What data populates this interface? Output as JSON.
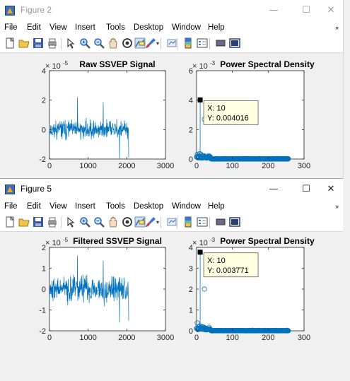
{
  "windows": [
    {
      "title": "Figure 2",
      "active": false,
      "menu": [
        "File",
        "Edit",
        "View",
        "Insert",
        "Tools",
        "Desktop",
        "Window",
        "Help"
      ],
      "plots": [
        {
          "title": "Raw SSVEP Signal",
          "exponent": "× 10",
          "exponent_power": "-5",
          "yticks": [
            "-2",
            "0",
            "2",
            "4"
          ],
          "xticks": [
            "0",
            "1000",
            "2000",
            "3000"
          ]
        },
        {
          "title": "Power Spectral Density",
          "exponent": "× 10",
          "exponent_power": "-3",
          "yticks": [
            "0",
            "2",
            "4",
            "6"
          ],
          "xticks": [
            "0",
            "100",
            "200",
            "300"
          ],
          "datatip": {
            "x": "X: 10",
            "y": "Y: 0.004016"
          }
        }
      ]
    },
    {
      "title": "Figure 5",
      "active": true,
      "menu": [
        "File",
        "Edit",
        "View",
        "Insert",
        "Tools",
        "Desktop",
        "Window",
        "Help"
      ],
      "plots": [
        {
          "title": "Filtered SSVEP Signal",
          "exponent": "× 10",
          "exponent_power": "-5",
          "yticks": [
            "-2",
            "-1",
            "0",
            "1",
            "2"
          ],
          "xticks": [
            "0",
            "1000",
            "2000",
            "3000"
          ]
        },
        {
          "title": "Power Spectral Density",
          "exponent": "× 10",
          "exponent_power": "-3",
          "yticks": [
            "0",
            "1",
            "2",
            "3",
            "4"
          ],
          "xticks": [
            "0",
            "100",
            "200",
            "300"
          ],
          "datatip": {
            "x": "X: 10",
            "y": "Y: 0.003771"
          }
        }
      ]
    }
  ],
  "titlebar_controls": {
    "minimize": "—",
    "maximize": "☐",
    "close": "✕"
  },
  "menu_overflow": "»",
  "toolbar_icons": [
    "new-figure-icon",
    "open-file-icon",
    "save-icon",
    "print-icon",
    "pointer-icon",
    "zoom-in-icon",
    "zoom-out-icon",
    "pan-icon",
    "rotate-3d-icon",
    "data-cursor-icon",
    "brush-icon",
    "link-plot-icon",
    "insert-colorbar-icon",
    "insert-legend-icon",
    "hide-plot-tools-icon",
    "show-plot-tools-icon"
  ],
  "colors": {
    "line": "#0072bd",
    "marker": "#0072bd",
    "datatip_bg": "#ffffe1"
  },
  "chart_data": [
    {
      "type": "line",
      "title": "Raw SSVEP Signal",
      "xlim": [
        0,
        3000
      ],
      "ylim": [
        -2e-05,
        4e-05
      ],
      "y_exponent": -5,
      "series": [
        {
          "x_range": [
            0,
            2048
          ],
          "noise_amplitude": 1e-05,
          "mean": 0,
          "spike_min": -2e-05,
          "spike_max": 2.2e-05
        }
      ]
    },
    {
      "type": "scatter",
      "title": "Power Spectral Density",
      "xlim": [
        0,
        300
      ],
      "ylim": [
        0,
        0.006
      ],
      "y_exponent": -3,
      "series": [
        {
          "x_range": [
            0,
            256
          ],
          "peak": {
            "x": 10,
            "y": 0.004016
          }
        }
      ]
    },
    {
      "type": "line",
      "title": "Filtered SSVEP Signal",
      "xlim": [
        0,
        3000
      ],
      "ylim": [
        -2e-05,
        2e-05
      ],
      "y_exponent": -5,
      "series": [
        {
          "x_range": [
            0,
            2048
          ],
          "noise_amplitude": 1e-05,
          "mean": 0,
          "spike_min": -1.6e-05,
          "spike_max": 1.6e-05
        }
      ]
    },
    {
      "type": "scatter",
      "title": "Power Spectral Density",
      "xlim": [
        0,
        300
      ],
      "ylim": [
        0,
        0.004
      ],
      "y_exponent": -3,
      "series": [
        {
          "x_range": [
            0,
            256
          ],
          "peak": {
            "x": 10,
            "y": 0.003771
          }
        }
      ]
    }
  ]
}
